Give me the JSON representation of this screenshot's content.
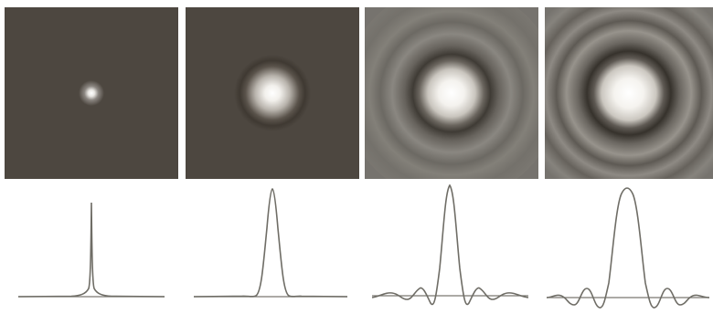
{
  "colors": {
    "dark_background": "#4d4740",
    "gray_background": "#76736e",
    "curve_stroke": "#6f6d66",
    "axis_stroke": "#7a7872"
  },
  "panels": [
    {
      "name": "panel-1",
      "background": "dark",
      "rings": false,
      "core": "tiny"
    },
    {
      "name": "panel-2",
      "background": "dark",
      "rings": false,
      "core": "small"
    },
    {
      "name": "panel-3",
      "background": "gray",
      "rings": true,
      "core": "medium"
    },
    {
      "name": "panel-4",
      "background": "gray",
      "rings": true,
      "core": "large"
    }
  ],
  "profiles": [
    {
      "name": "profile-1",
      "shape": "sharp-spike"
    },
    {
      "name": "profile-2",
      "shape": "gaussian-peak"
    },
    {
      "name": "profile-3",
      "shape": "sinc-like with side lobes"
    },
    {
      "name": "profile-4",
      "shape": "sinc-like with stronger side lobes"
    }
  ]
}
